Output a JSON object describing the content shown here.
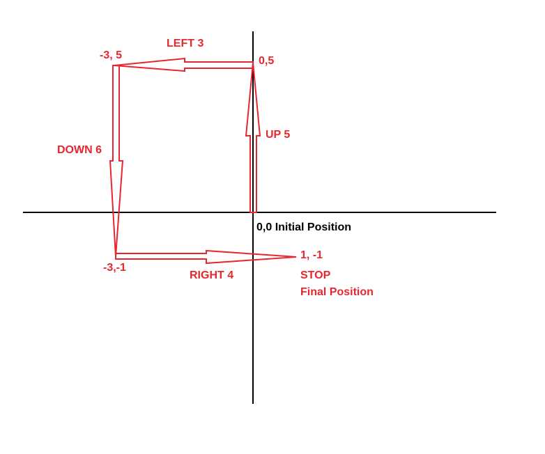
{
  "colors": {
    "path": "#e8262e",
    "axes": "#000000",
    "background": "#ffffff"
  },
  "moves": [
    {
      "label": "UP 5",
      "from": "0,0",
      "to": "0,5"
    },
    {
      "label": "LEFT 3",
      "from": "0,5",
      "to": "-3, 5"
    },
    {
      "label": "DOWN 6",
      "from": "-3, 5",
      "to": "-3,-1"
    },
    {
      "label": "RIGHT 4",
      "from": "-3,-1",
      "to": "1, -1"
    }
  ],
  "points": {
    "origin": "0,0 Initial Position",
    "p_0_5": "0,5",
    "p_m3_5": "-3, 5",
    "p_m3_m1": "-3,-1",
    "p_1_m1": "1, -1"
  },
  "final": {
    "stop": "STOP",
    "label": "Final Position"
  }
}
